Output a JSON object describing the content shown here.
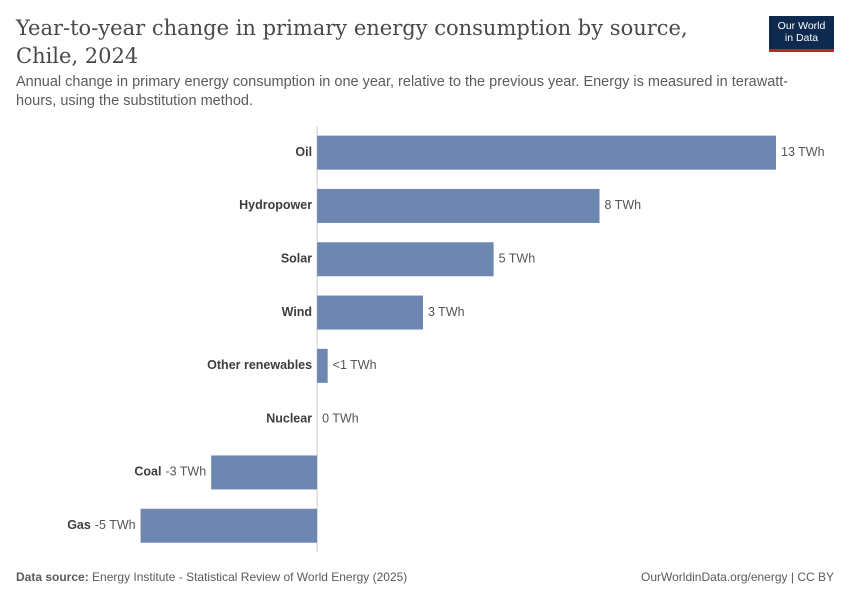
{
  "header": {
    "title": "Year-to-year change in primary energy consumption by source, Chile, 2024",
    "subtitle": "Annual change in primary energy consumption in one year, relative to the previous year. Energy is measured in terawatt-hours, using the substitution method.",
    "logo_line1": "Our World",
    "logo_line2": "in Data"
  },
  "colors": {
    "bar": "#6d87b0",
    "axis": "#cccccc",
    "label": "#3d3d3d",
    "value": "#555555",
    "brand": "#0f2a4f",
    "brand_accent": "#c4232c"
  },
  "chart_data": {
    "type": "bar",
    "orientation": "horizontal",
    "title": "Year-to-year change in primary energy consumption by source, Chile, 2024",
    "unit": "TWh",
    "categories": [
      "Oil",
      "Hydropower",
      "Solar",
      "Wind",
      "Other renewables",
      "Nuclear",
      "Coal",
      "Gas"
    ],
    "values": [
      13,
      8,
      5,
      3,
      0.3,
      0,
      -3,
      -5
    ],
    "value_labels": [
      "13 TWh",
      "8 TWh",
      "5 TWh",
      "3 TWh",
      "<1 TWh",
      "0 TWh",
      "-3 TWh",
      "-5 TWh"
    ],
    "xlim": [
      -5.3,
      13
    ]
  },
  "footer": {
    "source_label": "Data source:",
    "source_text": "Energy Institute - Statistical Review of World Energy (2025)",
    "right_text": "OurWorldinData.org/energy | CC BY"
  }
}
